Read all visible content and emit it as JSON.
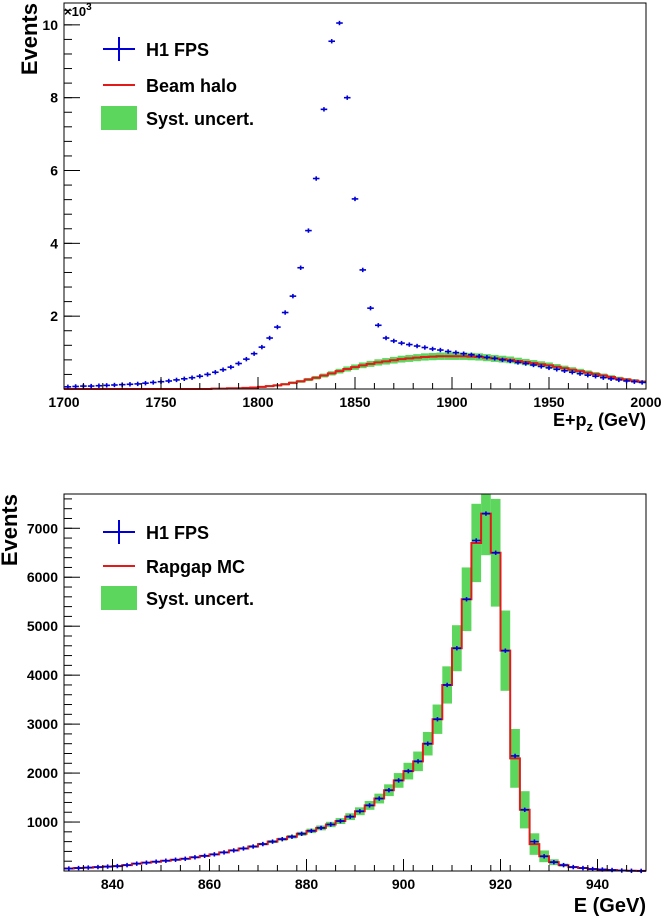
{
  "chart_data": [
    {
      "type": "histogram",
      "ylabel": "Events",
      "xlabel_main": "E+p",
      "xlabel_sub": "z",
      "xlabel_unit": " (GeV)",
      "exponent_label": "×10",
      "exponent_power": "3",
      "xlim": [
        1700,
        2000
      ],
      "ylim": [
        0,
        10.6
      ],
      "xticks": [
        1700,
        1750,
        1800,
        1850,
        1900,
        1950,
        2000
      ],
      "xtick_labels": [
        "1700",
        "1750",
        "1800",
        "1850",
        "1900",
        "1950",
        "2000"
      ],
      "yticks": [
        2,
        4,
        6,
        8,
        10
      ],
      "ytick_labels": [
        "2",
        "4",
        "6",
        "8",
        "10"
      ],
      "legend": [
        {
          "label": "H1 FPS",
          "kind": "data"
        },
        {
          "label": "Beam halo",
          "kind": "line"
        },
        {
          "label": "Syst. uncert.",
          "kind": "band"
        }
      ],
      "colors": {
        "data": "#0000d6",
        "model": "#e21a1a",
        "band": "#5cd65c"
      },
      "bins": {
        "start": 1700,
        "width": 4
      },
      "data_values": [
        0.06,
        0.07,
        0.08,
        0.08,
        0.09,
        0.1,
        0.11,
        0.12,
        0.13,
        0.14,
        0.16,
        0.18,
        0.2,
        0.22,
        0.25,
        0.28,
        0.31,
        0.35,
        0.4,
        0.46,
        0.53,
        0.6,
        0.7,
        0.82,
        0.97,
        1.15,
        1.4,
        1.7,
        2.1,
        2.55,
        3.33,
        4.35,
        5.78,
        7.68,
        9.55,
        10.05,
        8.0,
        5.22,
        3.27,
        2.22,
        1.75,
        1.4,
        1.32,
        1.26,
        1.22,
        1.18,
        1.14,
        1.1,
        1.07,
        1.03,
        1.0,
        0.97,
        0.94,
        0.9,
        0.87,
        0.84,
        0.8,
        0.77,
        0.73,
        0.7,
        0.66,
        0.62,
        0.58,
        0.54,
        0.5,
        0.46,
        0.42,
        0.38,
        0.35,
        0.31,
        0.28,
        0.25,
        0.22,
        0.2,
        0.18
      ],
      "model_values": [
        0.0,
        0.0,
        0.0,
        0.0,
        0.0,
        0.0,
        0.0,
        0.0,
        0.0,
        0.0,
        0.0,
        0.0,
        0.0,
        0.0,
        0.0,
        0.0,
        0.0,
        0.0,
        0.0,
        0.01,
        0.01,
        0.02,
        0.02,
        0.03,
        0.04,
        0.06,
        0.08,
        0.1,
        0.13,
        0.17,
        0.21,
        0.26,
        0.31,
        0.37,
        0.43,
        0.49,
        0.55,
        0.6,
        0.65,
        0.69,
        0.73,
        0.76,
        0.79,
        0.82,
        0.84,
        0.86,
        0.88,
        0.89,
        0.9,
        0.9,
        0.9,
        0.9,
        0.89,
        0.88,
        0.86,
        0.84,
        0.82,
        0.8,
        0.77,
        0.74,
        0.71,
        0.68,
        0.65,
        0.61,
        0.57,
        0.53,
        0.49,
        0.45,
        0.41,
        0.37,
        0.33,
        0.29,
        0.26,
        0.23,
        0.2
      ],
      "band_rel": 0.09
    },
    {
      "type": "histogram",
      "ylabel": "Events",
      "xlabel_main": "E (GeV)",
      "xlim": [
        830,
        950
      ],
      "ylim": [
        0,
        7700
      ],
      "xticks": [
        840,
        860,
        880,
        900,
        920,
        940
      ],
      "xtick_labels": [
        "840",
        "860",
        "880",
        "900",
        "920",
        "940"
      ],
      "yticks": [
        1000,
        2000,
        3000,
        4000,
        5000,
        6000,
        7000
      ],
      "ytick_labels": [
        "1000",
        "2000",
        "3000",
        "4000",
        "5000",
        "6000",
        "7000"
      ],
      "legend": [
        {
          "label": "H1 FPS",
          "kind": "data"
        },
        {
          "label": "Rapgap MC",
          "kind": "line"
        },
        {
          "label": "Syst. uncert.",
          "kind": "band"
        }
      ],
      "colors": {
        "data": "#0000d6",
        "model": "#e21a1a",
        "band": "#5cd65c"
      },
      "bins": {
        "start": 830,
        "width": 2
      },
      "data_values": [
        50,
        60,
        70,
        80,
        90,
        100,
        120,
        150,
        170,
        190,
        210,
        230,
        250,
        280,
        310,
        340,
        380,
        420,
        460,
        500,
        550,
        600,
        650,
        700,
        760,
        820,
        880,
        950,
        1020,
        1110,
        1220,
        1340,
        1480,
        1650,
        1850,
        2040,
        2240,
        2600,
        3100,
        3800,
        4550,
        5550,
        6750,
        7300,
        6500,
        4500,
        2350,
        1250,
        600,
        300,
        180,
        120,
        80,
        60,
        40,
        30,
        20,
        10,
        5,
        2
      ],
      "model_values": [
        50,
        60,
        70,
        80,
        90,
        100,
        120,
        150,
        170,
        190,
        210,
        230,
        250,
        280,
        310,
        340,
        380,
        420,
        460,
        500,
        550,
        600,
        650,
        700,
        760,
        820,
        880,
        950,
        1020,
        1110,
        1220,
        1340,
        1480,
        1650,
        1850,
        2040,
        2240,
        2600,
        3100,
        3800,
        4550,
        5550,
        6700,
        7300,
        6500,
        4500,
        2300,
        1250,
        550,
        300,
        180,
        120,
        80,
        60,
        40,
        30,
        20,
        10,
        5,
        2
      ],
      "band_abs": [
        5,
        5,
        5,
        5,
        5,
        5,
        8,
        10,
        10,
        10,
        10,
        12,
        12,
        15,
        15,
        18,
        18,
        20,
        22,
        25,
        25,
        30,
        30,
        35,
        40,
        45,
        50,
        55,
        60,
        70,
        80,
        90,
        100,
        120,
        150,
        170,
        200,
        240,
        300,
        380,
        470,
        650,
        800,
        850,
        1100,
        820,
        600,
        380,
        220,
        120,
        60,
        30,
        20,
        10,
        5,
        5,
        5,
        5,
        2,
        1
      ]
    }
  ]
}
